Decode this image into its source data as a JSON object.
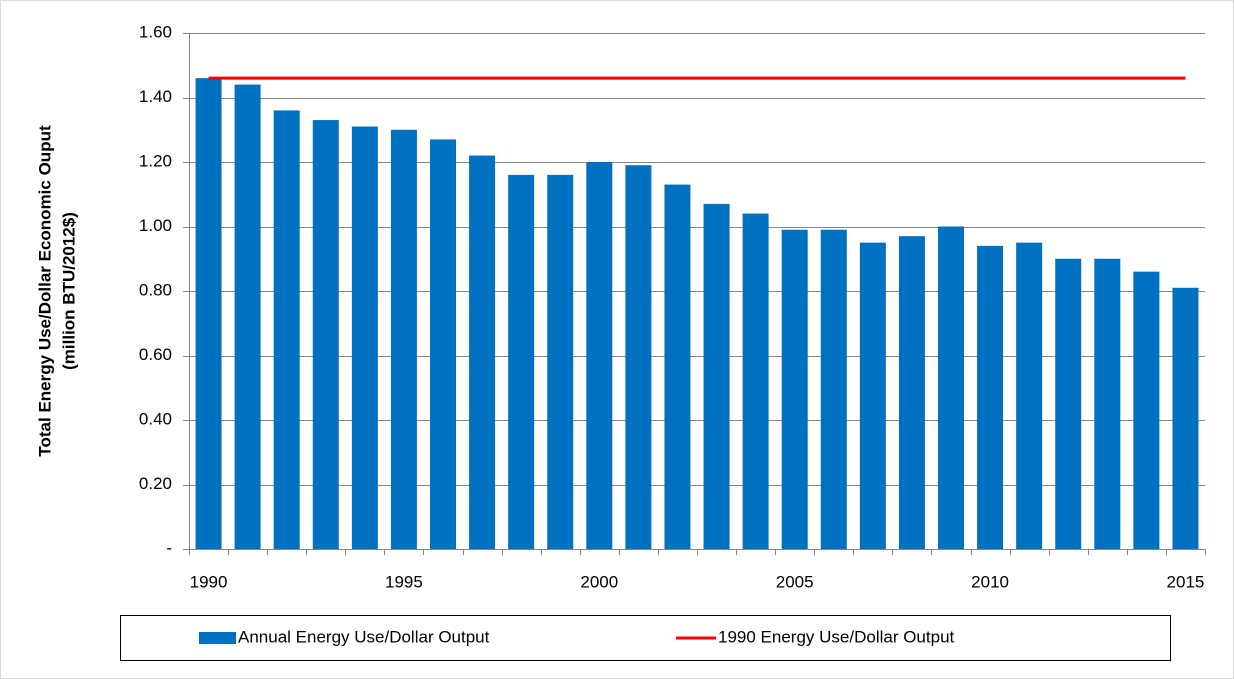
{
  "chart_data": {
    "type": "bar",
    "y_label": [
      "Total Energy Use/Dollar Economic Ouput",
      "(million BTU/2012$)"
    ],
    "categories": [
      "1990",
      null,
      null,
      null,
      null,
      "1995",
      null,
      null,
      null,
      null,
      "2000",
      null,
      null,
      null,
      null,
      "2005",
      null,
      null,
      null,
      null,
      "2010",
      null,
      null,
      null,
      null,
      "2015"
    ],
    "series": [
      {
        "name": "Annual Energy Use/Dollar Output",
        "type": "bar",
        "color": "#0070c0",
        "values": [
          1.46,
          1.44,
          1.36,
          1.33,
          1.31,
          1.3,
          1.27,
          1.22,
          1.16,
          1.16,
          1.2,
          1.19,
          1.13,
          1.07,
          1.04,
          0.99,
          0.99,
          0.95,
          0.97,
          1.0,
          0.94,
          0.95,
          0.9,
          0.9,
          0.86,
          0.81
        ]
      },
      {
        "name": "1990 Energy Use/Dollar Output",
        "type": "line",
        "color": "#ff0000",
        "values": [
          1.46,
          1.46,
          1.46,
          1.46,
          1.46,
          1.46,
          1.46,
          1.46,
          1.46,
          1.46,
          1.46,
          1.46,
          1.46,
          1.46,
          1.46,
          1.46,
          1.46,
          1.46,
          1.46,
          1.46,
          1.46,
          1.46,
          1.46,
          1.46,
          1.46,
          1.46
        ]
      }
    ],
    "ylim": [
      0,
      1.6
    ],
    "yticks": [
      {
        "value": 0,
        "label": "-"
      },
      {
        "value": 0.2,
        "label": "0.20"
      },
      {
        "value": 0.4,
        "label": "0.40"
      },
      {
        "value": 0.6,
        "label": "0.60"
      },
      {
        "value": 0.8,
        "label": "0.80"
      },
      {
        "value": 1.0,
        "label": "1.00"
      },
      {
        "value": 1.2,
        "label": "1.20"
      },
      {
        "value": 1.4,
        "label": "1.40"
      },
      {
        "value": 1.6,
        "label": "1.60"
      }
    ],
    "grid": true,
    "legend": "bottom"
  }
}
